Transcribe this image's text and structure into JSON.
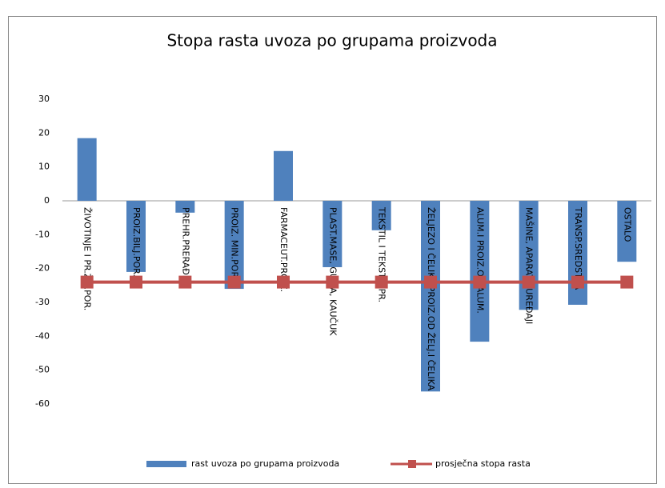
{
  "chart_data": {
    "type": "bar",
    "title": "Stopa rasta uvoza po grupama proizvoda",
    "categories": [
      "ŽIVOTINJE I PR.ŽIV.POR.",
      "PROIZ.BILJ.POR.",
      "PREHR.PRERAĐ.",
      "PROIZ. MIN.POR.",
      "FARMACEUT.PROIZ.",
      "PLAST.MASE, GUMA, KAUČUK",
      "TEKSTIL I TEKSTIL.PR.",
      "ŽELJEZO I ČELIK I PROIZ.OD ŽELJ.I ČELIKA",
      "ALUM.I PROIZ.OD ALUM.",
      "MAŠINE, APARATI, UREĐAJI",
      "TRANSP.SREDSTVA",
      "OSTALO"
    ],
    "series": [
      {
        "name": "rast uvoza po grupama proizvoda",
        "type": "bar",
        "color": "#4f81bd",
        "values": [
          18.5,
          -21,
          -3.5,
          -26,
          14.7,
          -19.6,
          -8.7,
          -56.3,
          -41.6,
          -32.2,
          -30.7,
          -18
        ]
      },
      {
        "name": "prosječna stopa rasta",
        "type": "line",
        "color": "#c0504d",
        "values": [
          -24,
          -24,
          -24,
          -24,
          -24,
          -24,
          -24,
          -24,
          -24,
          -24,
          -24,
          -24
        ]
      }
    ],
    "ylim": [
      -60,
      30
    ],
    "yticks": [
      -60,
      -50,
      -40,
      -30,
      -20,
      -10,
      0,
      10,
      20,
      30
    ],
    "grid": false,
    "legend": "bottom"
  }
}
